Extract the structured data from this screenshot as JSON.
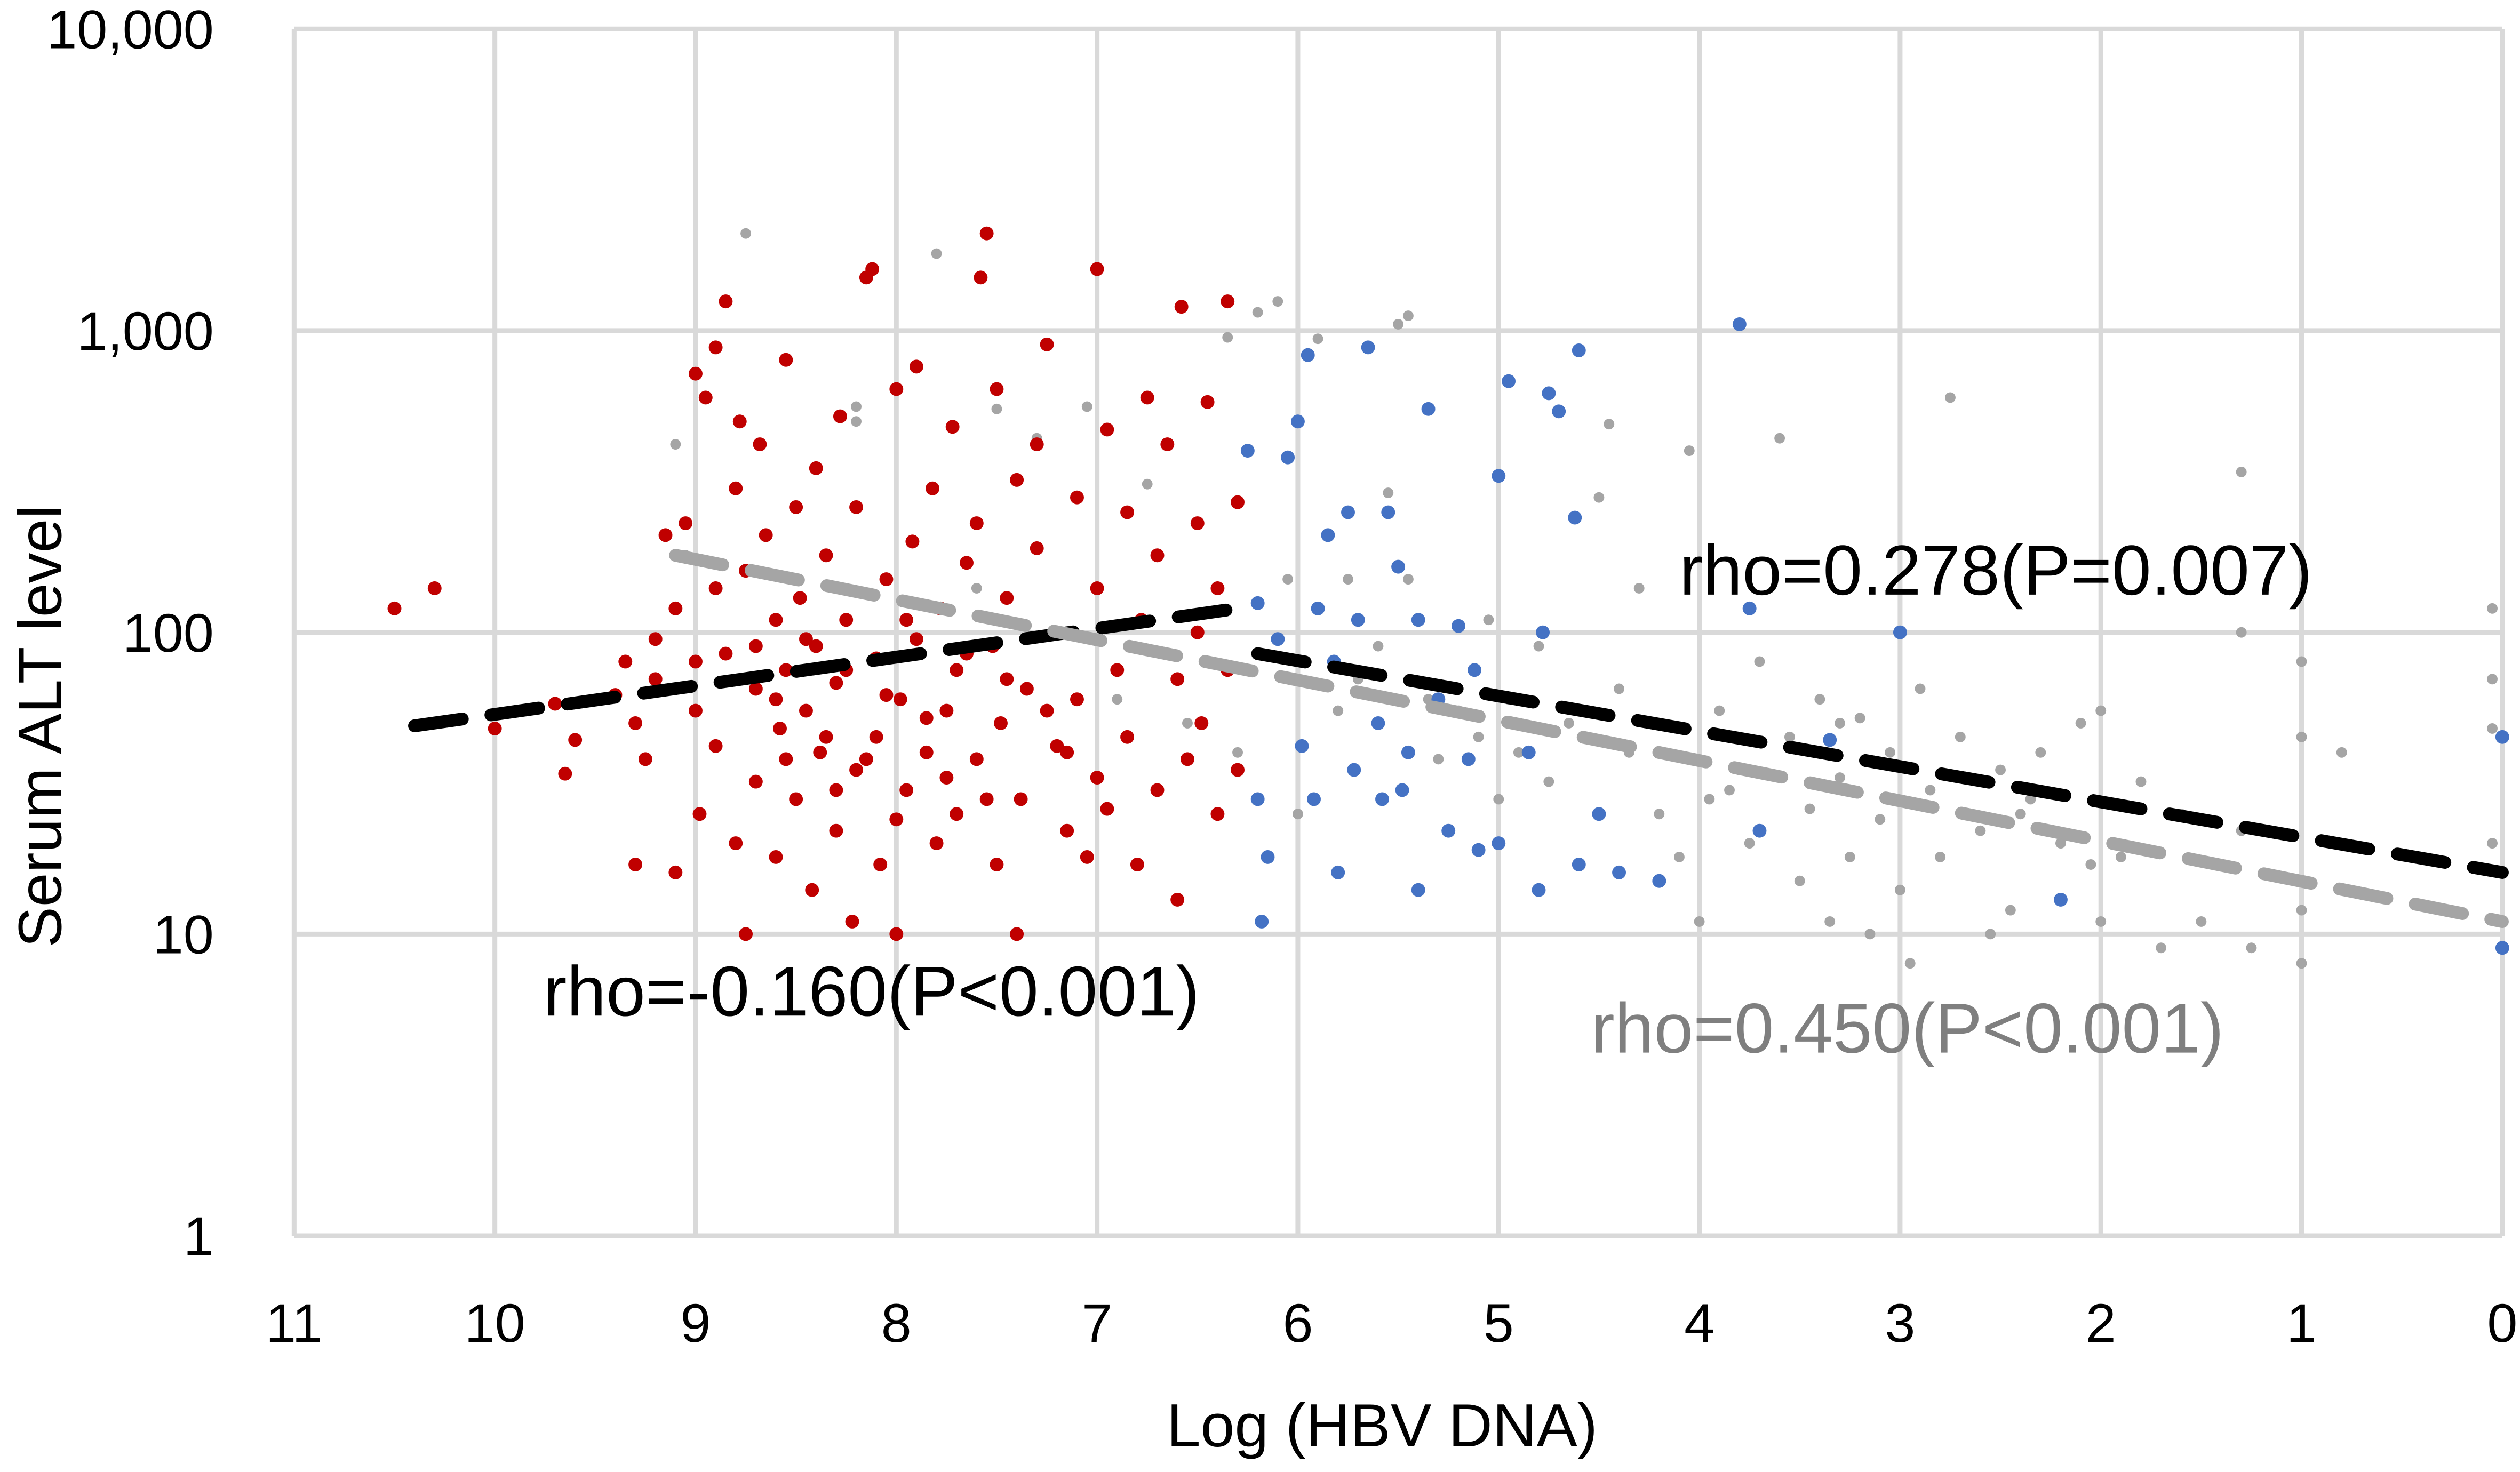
{
  "chart_data": {
    "type": "scatter",
    "title": "",
    "xlabel": "Log (HBV DNA)",
    "ylabel": "Serum ALT level",
    "xlim": [
      11,
      0
    ],
    "x_reversed": true,
    "ylim": [
      1,
      10000
    ],
    "y_scale": "log",
    "grid": true,
    "legend": "none",
    "x_ticks": [
      "11",
      "10",
      "9",
      "8",
      "7",
      "6",
      "5",
      "4",
      "3",
      "2",
      "1",
      "0"
    ],
    "y_ticks": [
      "1",
      "10",
      "100",
      "1,000",
      "10,000"
    ],
    "annotations": [
      {
        "text": "rho=-0.160(P<0.001)",
        "color": "#000000"
      },
      {
        "text": "rho=0.278(P=0.007)",
        "color": "#000000"
      },
      {
        "text": "rho=0.450(P<0.001)",
        "color": "#7f7f7f"
      }
    ],
    "series": [
      {
        "color": "#a5a5a5",
        "points": [
          [
            9.1,
            420
          ],
          [
            9.05,
            180
          ],
          [
            8.75,
            2100
          ],
          [
            8.2,
            500
          ],
          [
            8.2,
            560
          ],
          [
            7.8,
            1800
          ],
          [
            7.6,
            140
          ],
          [
            7.5,
            550
          ],
          [
            7.3,
            440
          ],
          [
            7.05,
            560
          ],
          [
            7.0,
            95
          ],
          [
            6.9,
            60
          ],
          [
            6.75,
            310
          ],
          [
            6.55,
            50
          ],
          [
            6.35,
            950
          ],
          [
            6.2,
            1150
          ],
          [
            6.1,
            1250
          ],
          [
            6.05,
            150
          ],
          [
            5.9,
            940
          ],
          [
            5.75,
            150
          ],
          [
            5.6,
            90
          ],
          [
            5.55,
            290
          ],
          [
            5.5,
            1050
          ],
          [
            5.45,
            1120
          ],
          [
            5.45,
            150
          ],
          [
            5.35,
            60
          ],
          [
            5.3,
            38
          ],
          [
            5.2,
            55
          ],
          [
            5.1,
            45
          ],
          [
            5.0,
            28
          ],
          [
            4.95,
            60
          ],
          [
            4.9,
            40
          ],
          [
            4.8,
            90
          ],
          [
            4.75,
            32
          ],
          [
            4.6,
            55
          ],
          [
            4.5,
            280
          ],
          [
            4.45,
            490
          ],
          [
            4.4,
            65
          ],
          [
            4.35,
            40
          ],
          [
            4.2,
            25
          ],
          [
            4.1,
            18
          ],
          [
            4.05,
            400
          ],
          [
            4.0,
            11
          ],
          [
            3.95,
            28
          ],
          [
            3.9,
            55
          ],
          [
            3.8,
            35
          ],
          [
            3.75,
            20
          ],
          [
            3.7,
            80
          ],
          [
            3.6,
            440
          ],
          [
            3.55,
            45
          ],
          [
            3.5,
            15
          ],
          [
            3.45,
            26
          ],
          [
            3.4,
            60
          ],
          [
            3.35,
            11
          ],
          [
            3.3,
            33
          ],
          [
            3.25,
            18
          ],
          [
            3.2,
            52
          ],
          [
            3.15,
            10
          ],
          [
            3.1,
            24
          ],
          [
            3.05,
            40
          ],
          [
            3.0,
            14
          ],
          [
            2.95,
            8
          ],
          [
            2.9,
            65
          ],
          [
            2.85,
            30
          ],
          [
            2.8,
            18
          ],
          [
            2.75,
            600
          ],
          [
            2.7,
            45
          ],
          [
            2.6,
            22
          ],
          [
            2.55,
            10
          ],
          [
            2.5,
            35
          ],
          [
            2.45,
            12
          ],
          [
            2.4,
            25
          ],
          [
            2.3,
            40
          ],
          [
            2.2,
            20
          ],
          [
            2.1,
            50
          ],
          [
            2.05,
            17
          ],
          [
            2.0,
            11
          ],
          [
            2.0,
            55
          ],
          [
            1.9,
            18
          ],
          [
            1.8,
            32
          ],
          [
            1.7,
            9
          ],
          [
            1.6,
            25
          ],
          [
            1.5,
            11
          ],
          [
            1.3,
            340
          ],
          [
            1.3,
            100
          ],
          [
            1.3,
            22
          ],
          [
            1.25,
            9
          ],
          [
            1.0,
            80
          ],
          [
            1.0,
            45
          ],
          [
            1.0,
            12
          ],
          [
            1.0,
            8
          ],
          [
            0.8,
            40
          ],
          [
            0.05,
            120
          ],
          [
            0.05,
            70
          ],
          [
            0.05,
            48
          ],
          [
            0.05,
            20
          ],
          [
            4.3,
            140
          ],
          [
            3.3,
            50
          ],
          [
            5.7,
            70
          ],
          [
            5.05,
            110
          ],
          [
            6.3,
            40
          ],
          [
            6.0,
            25
          ],
          [
            5.8,
            55
          ],
          [
            4.65,
            50
          ],
          [
            3.85,
            30
          ],
          [
            2.35,
            28
          ]
        ]
      },
      {
        "color": "#c00000",
        "points": [
          [
            10.5,
            120
          ],
          [
            10.3,
            140
          ],
          [
            10.0,
            48
          ],
          [
            9.7,
            58
          ],
          [
            9.65,
            34
          ],
          [
            9.6,
            44
          ],
          [
            9.4,
            62
          ],
          [
            9.35,
            80
          ],
          [
            9.3,
            17
          ],
          [
            9.3,
            50
          ],
          [
            9.25,
            38
          ],
          [
            9.2,
            95
          ],
          [
            9.2,
            70
          ],
          [
            9.15,
            210
          ],
          [
            9.1,
            16
          ],
          [
            9.1,
            120
          ],
          [
            9.05,
            230
          ],
          [
            9.0,
            720
          ],
          [
            9.0,
            55
          ],
          [
            8.98,
            25
          ],
          [
            8.95,
            600
          ],
          [
            8.9,
            880
          ],
          [
            8.9,
            140
          ],
          [
            8.9,
            42
          ],
          [
            8.85,
            1250
          ],
          [
            8.85,
            85
          ],
          [
            8.8,
            20
          ],
          [
            8.8,
            300
          ],
          [
            8.78,
            500
          ],
          [
            8.75,
            10
          ],
          [
            8.75,
            160
          ],
          [
            8.7,
            65
          ],
          [
            8.7,
            32
          ],
          [
            8.68,
            420
          ],
          [
            8.65,
            210
          ],
          [
            8.6,
            110
          ],
          [
            8.6,
            18
          ],
          [
            8.58,
            48
          ],
          [
            8.55,
            800
          ],
          [
            8.55,
            75
          ],
          [
            8.5,
            260
          ],
          [
            8.5,
            28
          ],
          [
            8.48,
            130
          ],
          [
            8.45,
            55
          ],
          [
            8.42,
            14
          ],
          [
            8.4,
            90
          ],
          [
            8.4,
            350
          ],
          [
            8.38,
            40
          ],
          [
            8.35,
            180
          ],
          [
            8.3,
            22
          ],
          [
            8.3,
            68
          ],
          [
            8.28,
            520
          ],
          [
            8.25,
            110
          ],
          [
            8.22,
            11
          ],
          [
            8.2,
            35
          ],
          [
            8.2,
            260
          ],
          [
            8.15,
            1500
          ],
          [
            8.12,
            1600
          ],
          [
            8.1,
            82
          ],
          [
            8.1,
            45
          ],
          [
            8.08,
            17
          ],
          [
            8.05,
            150
          ],
          [
            8.0,
            10
          ],
          [
            8.0,
            640
          ],
          [
            7.98,
            60
          ],
          [
            7.95,
            30
          ],
          [
            7.92,
            200
          ],
          [
            7.9,
            760
          ],
          [
            7.9,
            95
          ],
          [
            7.85,
            40
          ],
          [
            7.82,
            300
          ],
          [
            7.8,
            20
          ],
          [
            7.78,
            120
          ],
          [
            7.75,
            55
          ],
          [
            7.72,
            480
          ],
          [
            7.7,
            75
          ],
          [
            7.7,
            25
          ],
          [
            7.65,
            170
          ],
          [
            7.6,
            230
          ],
          [
            7.6,
            38
          ],
          [
            7.58,
            1500
          ],
          [
            7.55,
            2100
          ],
          [
            7.52,
            90
          ],
          [
            7.5,
            640
          ],
          [
            7.5,
            17
          ],
          [
            7.48,
            50
          ],
          [
            7.45,
            130
          ],
          [
            7.4,
            10
          ],
          [
            7.4,
            320
          ],
          [
            7.38,
            28
          ],
          [
            7.35,
            65
          ],
          [
            7.3,
            420
          ],
          [
            7.3,
            190
          ],
          [
            7.25,
            900
          ],
          [
            7.2,
            42
          ],
          [
            7.2,
            100
          ],
          [
            7.15,
            22
          ],
          [
            7.1,
            280
          ],
          [
            7.1,
            60
          ],
          [
            7.05,
            18
          ],
          [
            7.0,
            1600
          ],
          [
            7.0,
            140
          ],
          [
            7.0,
            33
          ],
          [
            6.95,
            470
          ],
          [
            6.9,
            75
          ],
          [
            6.85,
            250
          ],
          [
            6.85,
            45
          ],
          [
            6.8,
            17
          ],
          [
            6.78,
            110
          ],
          [
            6.75,
            600
          ],
          [
            6.7,
            30
          ],
          [
            6.7,
            180
          ],
          [
            6.65,
            420
          ],
          [
            6.6,
            13
          ],
          [
            6.6,
            70
          ],
          [
            6.58,
            1200
          ],
          [
            6.55,
            38
          ],
          [
            6.5,
            230
          ],
          [
            6.5,
            100
          ],
          [
            6.48,
            50
          ],
          [
            6.45,
            580
          ],
          [
            6.4,
            140
          ],
          [
            6.4,
            25
          ],
          [
            6.35,
            75
          ],
          [
            6.35,
            1250
          ],
          [
            6.3,
            35
          ],
          [
            6.3,
            270
          ],
          [
            8.6,
            60
          ],
          [
            8.45,
            95
          ],
          [
            8.35,
            45
          ],
          [
            8.25,
            75
          ],
          [
            8.15,
            38
          ],
          [
            8.05,
            62
          ],
          [
            7.95,
            110
          ],
          [
            7.85,
            52
          ],
          [
            7.65,
            85
          ],
          [
            7.45,
            70
          ],
          [
            7.25,
            55
          ],
          [
            8.3,
            30
          ],
          [
            8.55,
            38
          ],
          [
            8.7,
            90
          ],
          [
            9.0,
            80
          ],
          [
            8.0,
            24
          ],
          [
            7.75,
            33
          ],
          [
            7.55,
            28
          ],
          [
            7.15,
            40
          ],
          [
            6.95,
            26
          ]
        ]
      },
      {
        "color": "#4472c4",
        "points": [
          [
            6.25,
            400
          ],
          [
            6.2,
            125
          ],
          [
            6.2,
            28
          ],
          [
            6.18,
            11
          ],
          [
            6.15,
            18
          ],
          [
            6.1,
            95
          ],
          [
            6.05,
            380
          ],
          [
            6.0,
            500
          ],
          [
            5.98,
            42
          ],
          [
            5.95,
            830
          ],
          [
            5.92,
            28
          ],
          [
            5.9,
            120
          ],
          [
            5.85,
            210
          ],
          [
            5.82,
            80
          ],
          [
            5.8,
            16
          ],
          [
            5.75,
            250
          ],
          [
            5.72,
            35
          ],
          [
            5.7,
            110
          ],
          [
            5.65,
            880
          ],
          [
            5.6,
            50
          ],
          [
            5.58,
            28
          ],
          [
            5.55,
            250
          ],
          [
            5.5,
            165
          ],
          [
            5.48,
            30
          ],
          [
            5.45,
            40
          ],
          [
            5.4,
            14
          ],
          [
            5.4,
            110
          ],
          [
            5.35,
            550
          ],
          [
            5.3,
            60
          ],
          [
            5.25,
            22
          ],
          [
            5.2,
            105
          ],
          [
            5.15,
            38
          ],
          [
            5.12,
            75
          ],
          [
            5.1,
            19
          ],
          [
            5.0,
            330
          ],
          [
            5.0,
            20
          ],
          [
            4.95,
            680
          ],
          [
            4.85,
            40
          ],
          [
            4.8,
            14
          ],
          [
            4.78,
            100
          ],
          [
            4.75,
            620
          ],
          [
            4.7,
            540
          ],
          [
            4.62,
            240
          ],
          [
            4.6,
            860
          ],
          [
            4.6,
            17
          ],
          [
            4.5,
            25
          ],
          [
            4.4,
            16
          ],
          [
            4.2,
            15
          ],
          [
            3.8,
            1050
          ],
          [
            3.75,
            120
          ],
          [
            3.7,
            22
          ],
          [
            3.35,
            44
          ],
          [
            3.0,
            100
          ],
          [
            2.2,
            13
          ],
          [
            0,
            45
          ],
          [
            0,
            9
          ]
        ]
      }
    ],
    "trendlines": [
      {
        "color": "#000000",
        "from": [
          10.4,
          49
        ],
        "to": [
          6.3,
          120
        ]
      },
      {
        "color": "#000000",
        "from": [
          6.2,
          85
        ],
        "to": [
          0,
          16
        ]
      },
      {
        "color": "#a5a5a5",
        "from": [
          9.1,
          180
        ],
        "to": [
          0,
          11
        ]
      }
    ]
  }
}
